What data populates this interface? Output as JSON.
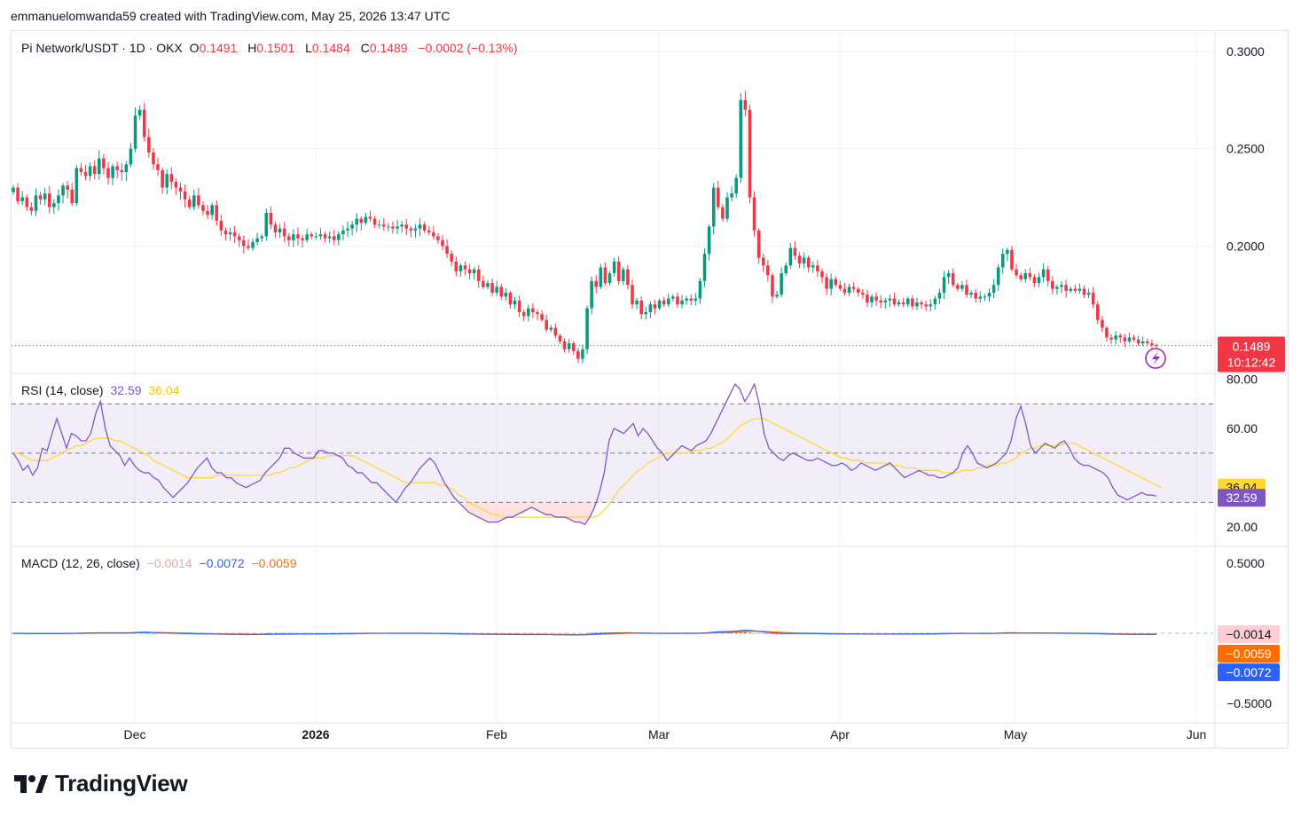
{
  "header": {
    "attribution": "emmanuelomwanda59 created with TradingView.com, May 25, 2026 13:47 UTC"
  },
  "legend": {
    "symbol": "Pi Network/USDT · 1D · OKX",
    "o_label": "O",
    "o_value": "0.1491",
    "h_label": "H",
    "h_value": "0.1501",
    "l_label": "L",
    "l_value": "0.1484",
    "c_label": "C",
    "c_value": "0.1489",
    "change": "−0.0002 (−0.13%)"
  },
  "rsi_legend": {
    "label": "RSI (14, close)",
    "rsi_value": "32.59",
    "ma_value": "36.04"
  },
  "macd_legend": {
    "label": "MACD (12, 26, close)",
    "hist_value": "−0.0014",
    "macd_value": "−0.0072",
    "signal_value": "−0.0059"
  },
  "price_badge": {
    "price": "0.1489",
    "countdown": "10:12:42"
  },
  "rsi_badges": {
    "ma": "36.04",
    "rsi": "32.59"
  },
  "macd_badges": {
    "hist": "−0.0014",
    "signal": "−0.0059",
    "macd": "−0.0072"
  },
  "brand": {
    "name": "TradingView",
    "icon": "tradingview-logo-icon"
  },
  "colors": {
    "up": "#089981",
    "down": "#f23645",
    "rsi": "#7e57c2",
    "rsi_ma": "#fdd835",
    "macd": "#2962ff",
    "signal": "#ff6d00",
    "hist_neg": "#ffcdd2"
  },
  "chart_data": [
    {
      "type": "candlestick",
      "title": "Pi Network/USDT · 1D · OKX",
      "x_ticks": [
        "Dec",
        "2026",
        "Feb",
        "Mar",
        "Apr",
        "May",
        "Jun"
      ],
      "y_ticks": [
        "0.3000",
        "0.2500",
        "0.2000"
      ],
      "ylim": [
        0.135,
        0.31
      ],
      "last_price": 0.1489,
      "series_close": [
        0.23,
        0.223,
        0.225,
        0.22,
        0.218,
        0.226,
        0.224,
        0.227,
        0.22,
        0.222,
        0.226,
        0.231,
        0.229,
        0.222,
        0.24,
        0.238,
        0.236,
        0.241,
        0.237,
        0.245,
        0.24,
        0.235,
        0.241,
        0.239,
        0.238,
        0.242,
        0.25,
        0.267,
        0.27,
        0.256,
        0.248,
        0.242,
        0.239,
        0.23,
        0.237,
        0.233,
        0.23,
        0.228,
        0.224,
        0.22,
        0.226,
        0.221,
        0.218,
        0.216,
        0.221,
        0.213,
        0.208,
        0.206,
        0.207,
        0.205,
        0.203,
        0.2,
        0.199,
        0.202,
        0.204,
        0.205,
        0.217,
        0.211,
        0.207,
        0.209,
        0.205,
        0.203,
        0.206,
        0.204,
        0.203,
        0.206,
        0.205,
        0.205,
        0.206,
        0.204,
        0.205,
        0.203,
        0.206,
        0.208,
        0.209,
        0.211,
        0.214,
        0.212,
        0.215,
        0.214,
        0.211,
        0.211,
        0.21,
        0.21,
        0.209,
        0.21,
        0.211,
        0.209,
        0.208,
        0.209,
        0.211,
        0.208,
        0.207,
        0.205,
        0.203,
        0.2,
        0.196,
        0.192,
        0.187,
        0.19,
        0.188,
        0.186,
        0.188,
        0.182,
        0.179,
        0.181,
        0.176,
        0.179,
        0.174,
        0.176,
        0.17,
        0.172,
        0.166,
        0.164,
        0.168,
        0.166,
        0.165,
        0.162,
        0.157,
        0.158,
        0.154,
        0.151,
        0.147,
        0.15,
        0.146,
        0.142,
        0.147,
        0.168,
        0.182,
        0.179,
        0.189,
        0.181,
        0.186,
        0.192,
        0.182,
        0.188,
        0.18,
        0.17,
        0.172,
        0.165,
        0.166,
        0.17,
        0.168,
        0.172,
        0.17,
        0.173,
        0.174,
        0.17,
        0.172,
        0.173,
        0.172,
        0.173,
        0.182,
        0.196,
        0.21,
        0.23,
        0.22,
        0.214,
        0.225,
        0.227,
        0.235,
        0.275,
        0.27,
        0.225,
        0.208,
        0.194,
        0.19,
        0.185,
        0.174,
        0.175,
        0.186,
        0.19,
        0.199,
        0.195,
        0.191,
        0.194,
        0.189,
        0.19,
        0.187,
        0.184,
        0.178,
        0.183,
        0.18,
        0.178,
        0.176,
        0.179,
        0.178,
        0.176,
        0.175,
        0.171,
        0.174,
        0.172,
        0.171,
        0.172,
        0.173,
        0.17,
        0.171,
        0.17,
        0.173,
        0.169,
        0.171,
        0.17,
        0.169,
        0.17,
        0.173,
        0.176,
        0.184,
        0.186,
        0.18,
        0.178,
        0.18,
        0.175,
        0.176,
        0.173,
        0.174,
        0.174,
        0.176,
        0.18,
        0.189,
        0.196,
        0.198,
        0.188,
        0.185,
        0.183,
        0.186,
        0.184,
        0.181,
        0.184,
        0.188,
        0.182,
        0.178,
        0.179,
        0.18,
        0.177,
        0.178,
        0.177,
        0.178,
        0.175,
        0.176,
        0.17,
        0.162,
        0.158,
        0.153,
        0.152,
        0.154,
        0.153,
        0.151,
        0.153,
        0.152,
        0.15,
        0.151,
        0.15,
        0.1491,
        0.1489
      ]
    },
    {
      "type": "line",
      "title": "RSI (14, close)",
      "y_ticks": [
        "80.00",
        "60.00",
        "20.00"
      ],
      "ylim": [
        12.5,
        82
      ],
      "bands": [
        30,
        50,
        70
      ],
      "series": [
        {
          "name": "RSI",
          "last": 32.59,
          "values": [
            50,
            47,
            43,
            45,
            41,
            44,
            52,
            51,
            58,
            64,
            58,
            52,
            58,
            57,
            55,
            55,
            58,
            66,
            71,
            60,
            53,
            51,
            49,
            45,
            48,
            45,
            43,
            42,
            42,
            40,
            39,
            36,
            34,
            32,
            34,
            36,
            38,
            41,
            44,
            46,
            48,
            44,
            42,
            42,
            40,
            40,
            38,
            37,
            36,
            37,
            38,
            39,
            42,
            44,
            46,
            48,
            52,
            52,
            50,
            49,
            48,
            48,
            48,
            51,
            51,
            50,
            50,
            49,
            48,
            45,
            44,
            42,
            42,
            40,
            38,
            38,
            36,
            34,
            32,
            30,
            33,
            36,
            38,
            41,
            44,
            46,
            48,
            46,
            42,
            38,
            35,
            32,
            30,
            28,
            26,
            25,
            24,
            23,
            22,
            22,
            22,
            23,
            24,
            24,
            25,
            26,
            27,
            28,
            27,
            26,
            25,
            25,
            24,
            24,
            24,
            23,
            22,
            22,
            21,
            24,
            28,
            34,
            42,
            55,
            60,
            59,
            58,
            60,
            62,
            57,
            60,
            58,
            55,
            52,
            50,
            47,
            49,
            51,
            53,
            52,
            51,
            53,
            54,
            55,
            58,
            62,
            66,
            70,
            74,
            78,
            76,
            71,
            74,
            78,
            70,
            58,
            52,
            50,
            48,
            47,
            49,
            50,
            49,
            48,
            47,
            47,
            48,
            47,
            46,
            45,
            45,
            46,
            45,
            43,
            44,
            46,
            45,
            44,
            43,
            44,
            45,
            46,
            44,
            42,
            40,
            41,
            42,
            43,
            42,
            41,
            41,
            40,
            40,
            41,
            42,
            44,
            50,
            53,
            50,
            46,
            45,
            44,
            45,
            46,
            48,
            50,
            55,
            64,
            69,
            62,
            53,
            50,
            52,
            54,
            53,
            52,
            54,
            55,
            52,
            48,
            46,
            45,
            45,
            44,
            43,
            42,
            40,
            36,
            33,
            32,
            31,
            32,
            33,
            34,
            33,
            33,
            32.59
          ]
        },
        {
          "name": "RSI MA",
          "last": 36.04,
          "values": [
            50,
            50,
            49,
            48,
            47,
            47,
            47,
            47,
            48,
            49,
            50,
            51,
            52,
            53,
            53,
            54,
            55,
            56,
            56,
            56,
            56,
            55,
            55,
            54,
            53,
            52,
            51,
            50,
            49,
            47,
            46,
            45,
            44,
            43,
            42,
            41,
            40,
            40,
            40,
            40,
            40,
            40,
            41,
            41,
            41,
            41,
            41,
            41,
            41,
            41,
            41,
            41,
            41,
            41,
            42,
            42,
            43,
            44,
            44,
            45,
            46,
            47,
            48,
            48,
            48,
            49,
            49,
            49,
            49,
            49,
            49,
            48,
            47,
            46,
            45,
            44,
            43,
            42,
            41,
            40,
            39,
            38,
            38,
            38,
            38,
            38,
            38,
            38,
            37,
            37,
            36,
            35,
            33,
            32,
            30,
            29,
            28,
            27,
            26,
            25,
            25,
            24,
            24,
            24,
            24,
            24,
            24,
            24,
            24,
            24,
            24,
            24,
            24,
            24,
            24,
            24,
            24,
            24,
            24,
            24,
            24,
            25,
            27,
            29,
            32,
            35,
            37,
            39,
            41,
            43,
            44,
            46,
            47,
            48,
            49,
            50,
            50,
            50,
            50,
            50,
            51,
            51,
            51,
            52,
            52,
            53,
            54,
            55,
            57,
            59,
            61,
            62,
            63,
            64,
            64,
            64,
            63,
            62,
            61,
            60,
            59,
            58,
            57,
            56,
            55,
            54,
            53,
            52,
            51,
            50,
            49,
            48,
            48,
            47,
            47,
            47,
            46,
            46,
            46,
            46,
            46,
            45,
            45,
            45,
            44,
            44,
            44,
            43,
            43,
            43,
            43,
            43,
            42,
            42,
            42,
            42,
            43,
            43,
            43,
            44,
            44,
            45,
            45,
            45,
            46,
            46,
            47,
            48,
            50,
            51,
            52,
            52,
            53,
            53,
            53,
            53,
            53,
            54,
            54,
            54,
            53,
            52,
            51,
            50,
            49,
            48,
            47,
            46,
            45,
            44,
            43,
            42,
            41,
            40,
            39,
            38,
            37,
            36.04
          ]
        }
      ]
    },
    {
      "type": "line",
      "title": "MACD (12, 26, close)",
      "y_ticks": [
        "0.5000",
        "−0.5000"
      ],
      "ylim": [
        -0.5,
        0.5
      ],
      "series": [
        {
          "name": "MACD",
          "last": -0.0072
        },
        {
          "name": "Signal",
          "last": -0.0059
        },
        {
          "name": "Histogram",
          "last": -0.0014
        }
      ]
    }
  ]
}
